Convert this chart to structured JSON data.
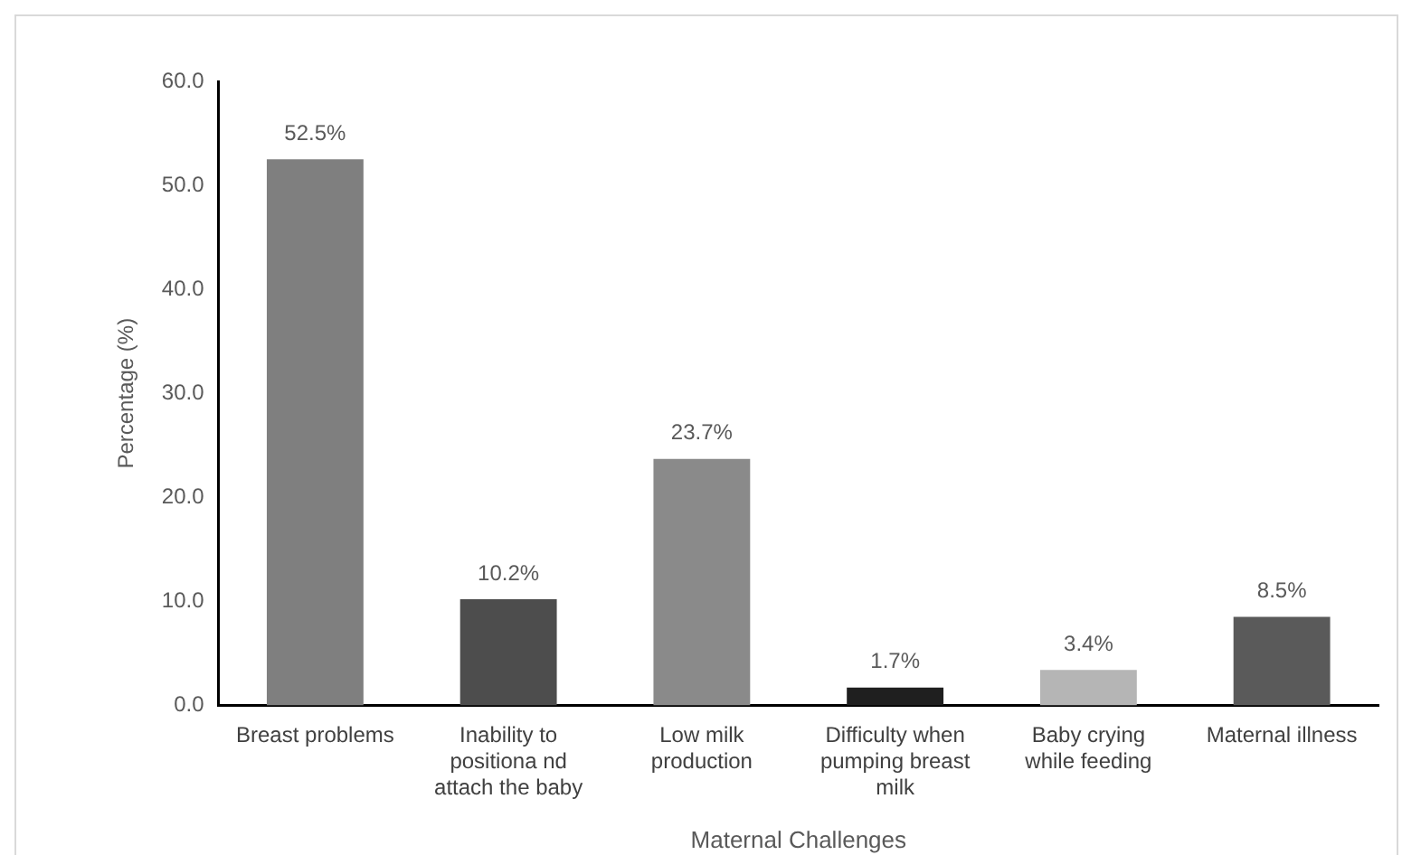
{
  "chart_data": {
    "type": "bar",
    "xlabel": "Maternal Challenges",
    "ylabel": "Percentage (%)",
    "categories": [
      "Breast problems",
      "Inability to positiona nd attach the baby",
      "Low milk production",
      "Difficulty when pumping breast milk",
      "Baby crying while feeding",
      "Maternal illness"
    ],
    "values": [
      52.5,
      10.2,
      23.7,
      1.7,
      3.4,
      8.5
    ],
    "value_labels": [
      "52.5%",
      "10.2%",
      "23.7%",
      "1.7%",
      "3.4%",
      "8.5%"
    ],
    "colors": [
      "#7f7f7f",
      "#4d4d4d",
      "#8a8a8a",
      "#1f1f1f",
      "#b5b5b5",
      "#5a5a5a"
    ],
    "ylim": [
      0,
      60
    ],
    "yticks": [
      {
        "value": 0,
        "label": "0.0"
      },
      {
        "value": 10,
        "label": "10.0"
      },
      {
        "value": 20,
        "label": "20.0"
      },
      {
        "value": 30,
        "label": "30.0"
      },
      {
        "value": 40,
        "label": "40.0"
      },
      {
        "value": 50,
        "label": "50.0"
      },
      {
        "value": 60,
        "label": "60.0"
      }
    ],
    "grid": false,
    "legend": false
  }
}
